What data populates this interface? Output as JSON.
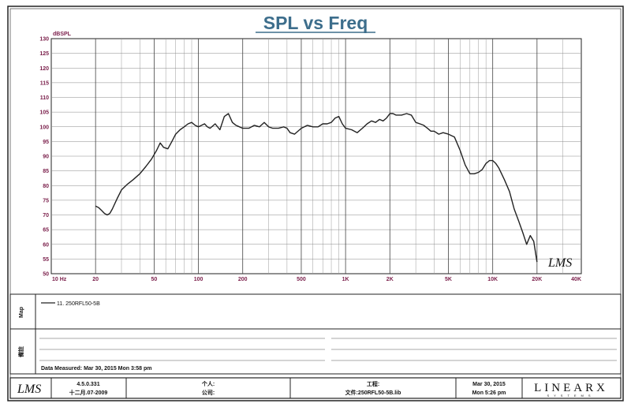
{
  "chart_data": {
    "type": "line",
    "title": "SPL vs Freq",
    "ylabel": "dBSPL",
    "xscale": "log",
    "xlim": [
      10,
      40000
    ],
    "ylim": [
      50,
      130
    ],
    "grid": true,
    "y_ticks": [
      "130",
      "125",
      "120",
      "115",
      "110",
      "105",
      "100",
      "95",
      "90",
      "85",
      "80",
      "75",
      "70",
      "65",
      "60",
      "55",
      "50"
    ],
    "x_ticks": [
      {
        "value": 10,
        "label": "10 Hz"
      },
      {
        "value": 20,
        "label": "20"
      },
      {
        "value": 50,
        "label": "50"
      },
      {
        "value": 100,
        "label": "100"
      },
      {
        "value": 200,
        "label": "200"
      },
      {
        "value": 500,
        "label": "500"
      },
      {
        "value": 1000,
        "label": "1K"
      },
      {
        "value": 2000,
        "label": "2K"
      },
      {
        "value": 5000,
        "label": "5K"
      },
      {
        "value": 10000,
        "label": "10K"
      },
      {
        "value": 20000,
        "label": "20K"
      },
      {
        "value": 40000,
        "label": "40K"
      }
    ],
    "series": [
      {
        "name": "11. 250RFL50-5B",
        "color": "#222222",
        "x": [
          20,
          21,
          22,
          23,
          24,
          25,
          26,
          28,
          30,
          33,
          36,
          40,
          44,
          48,
          52,
          55,
          58,
          62,
          66,
          70,
          75,
          80,
          85,
          90,
          95,
          100,
          105,
          110,
          115,
          120,
          130,
          140,
          150,
          160,
          170,
          180,
          190,
          200,
          220,
          240,
          260,
          280,
          300,
          320,
          350,
          380,
          400,
          420,
          450,
          500,
          550,
          600,
          650,
          700,
          750,
          800,
          850,
          900,
          950,
          1000,
          1100,
          1200,
          1300,
          1400,
          1500,
          1600,
          1700,
          1800,
          1900,
          2000,
          2100,
          2200,
          2400,
          2600,
          2800,
          3000,
          3200,
          3400,
          3600,
          3800,
          4000,
          4300,
          4600,
          5000,
          5500,
          6000,
          6500,
          7000,
          7500,
          8000,
          8500,
          9000,
          9500,
          10000,
          10500,
          11000,
          12000,
          13000,
          14000,
          15000,
          16000,
          17000,
          18000,
          19000,
          20000
        ],
        "y": [
          73,
          72.5,
          71.5,
          70.5,
          70,
          70.5,
          72,
          75.5,
          78.5,
          80.5,
          82,
          84,
          86.5,
          89,
          92,
          94.5,
          93,
          92.5,
          95,
          97.5,
          99,
          100,
          101,
          101.5,
          100.5,
          100,
          100.5,
          101,
          100,
          99.5,
          101,
          99,
          103.5,
          104.5,
          101.5,
          100.5,
          100,
          99.5,
          99.5,
          100.5,
          100,
          101.5,
          100,
          99.5,
          99.5,
          100,
          99.5,
          98,
          97.5,
          99.5,
          100.5,
          100,
          100,
          101,
          101,
          101.5,
          103,
          103.5,
          101,
          99.5,
          99,
          98,
          99.5,
          101,
          102,
          101.5,
          102.5,
          102,
          103,
          104.5,
          104.5,
          104,
          104,
          104.5,
          104,
          101.5,
          101,
          100.5,
          99.5,
          98.5,
          98.5,
          97.5,
          98,
          97.5,
          96.5,
          92,
          87,
          84,
          84,
          84.5,
          85.5,
          87.5,
          88.5,
          88.5,
          87.5,
          86,
          82,
          78,
          72,
          68,
          64,
          60,
          63,
          61,
          54
        ]
      }
    ]
  },
  "legend": {
    "panel_label": "Map",
    "entry": "11. 250RFL50-5B"
  },
  "notes_panel": {
    "label": "備註",
    "measured": "Data Measured: Mar 30, 2015  Mon  3:58 pm"
  },
  "watermark": "LMS",
  "footer": {
    "logo": "LMS",
    "version": "4.5.0.331",
    "version_date": "十二月.07-2009",
    "person": "个人:",
    "company": "公司:",
    "project": "工程:",
    "file": "文件:250RFL50-5B.lib",
    "date": "Mar 30, 2015",
    "time": "Mon  5:26 pm",
    "brand": "LINEARX",
    "brand_sub": "SYSTEMS"
  }
}
